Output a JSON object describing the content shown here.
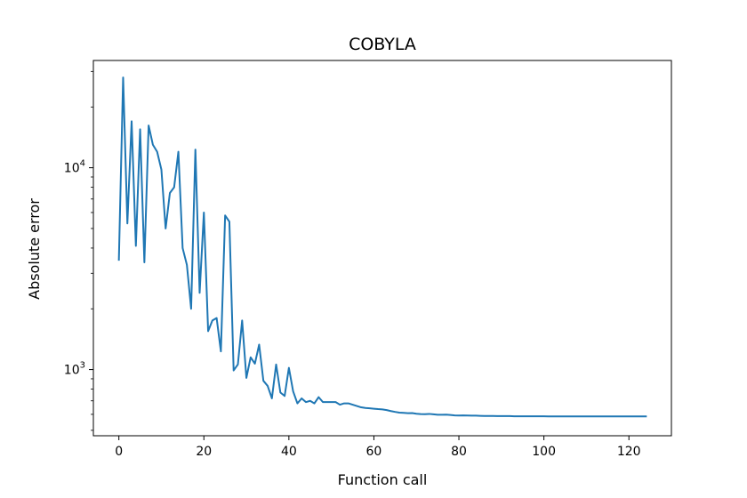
{
  "chart_data": {
    "type": "line",
    "title": "COBYLA",
    "xlabel": "Function call",
    "ylabel": "Absolute error",
    "yscale": "log",
    "xlim": [
      -6,
      130
    ],
    "ylim": [
      470,
      34000
    ],
    "grid": false,
    "legend": "none",
    "x_ticks": [
      0,
      20,
      40,
      60,
      80,
      100,
      120
    ],
    "x_tick_labels": [
      "0",
      "20",
      "40",
      "60",
      "80",
      "100",
      "120"
    ],
    "y_major_ticks": [
      1000,
      10000
    ],
    "y_tick_labels": [
      {
        "base": "10",
        "exp": "3"
      },
      {
        "base": "10",
        "exp": "4"
      }
    ],
    "y_minor_ticks": [
      500,
      600,
      700,
      800,
      900,
      2000,
      3000,
      4000,
      5000,
      6000,
      7000,
      8000,
      9000,
      20000,
      30000
    ],
    "series": [
      {
        "color": "#1f77b4",
        "x": [
          0,
          1,
          2,
          3,
          4,
          5,
          6,
          7,
          8,
          9,
          10,
          11,
          12,
          13,
          14,
          15,
          16,
          17,
          18,
          19,
          20,
          21,
          22,
          23,
          24,
          25,
          26,
          27,
          28,
          29,
          30,
          31,
          32,
          33,
          34,
          35,
          36,
          37,
          38,
          39,
          40,
          41,
          42,
          43,
          44,
          45,
          46,
          47,
          48,
          49,
          50,
          51,
          52,
          53,
          54,
          55,
          56,
          57,
          58,
          59,
          60,
          61,
          62,
          63,
          64,
          65,
          66,
          67,
          68,
          69,
          70,
          71,
          72,
          73,
          74,
          75,
          76,
          77,
          78,
          79,
          80,
          81,
          82,
          83,
          84,
          85,
          86,
          87,
          88,
          89,
          90,
          91,
          92,
          93,
          94,
          95,
          96,
          97,
          98,
          99,
          100,
          101,
          102,
          103,
          104,
          105,
          106,
          107,
          108,
          109,
          110,
          111,
          112,
          113,
          114,
          115,
          116,
          117,
          118,
          119,
          120,
          121,
          122,
          123,
          124
        ],
        "y": [
          3500,
          28000,
          5300,
          17000,
          4100,
          15500,
          3400,
          16200,
          13000,
          12000,
          9800,
          5000,
          7500,
          8000,
          12000,
          4000,
          3300,
          2000,
          12300,
          2400,
          6000,
          1550,
          1750,
          1800,
          1230,
          5800,
          5400,
          990,
          1060,
          1750,
          910,
          1150,
          1070,
          1330,
          880,
          830,
          720,
          1060,
          770,
          740,
          1020,
          780,
          680,
          720,
          690,
          700,
          680,
          730,
          690,
          690,
          690,
          690,
          670,
          680,
          680,
          670,
          660,
          650,
          645,
          643,
          640,
          637,
          635,
          630,
          623,
          617,
          612,
          610,
          608,
          609,
          604,
          602,
          601,
          603,
          600,
          597,
          597,
          598,
          596,
          593,
          592,
          593,
          592,
          591,
          591,
          590,
          589,
          589,
          589,
          588,
          588,
          588,
          588,
          587,
          587,
          587,
          587,
          587,
          587,
          587,
          587,
          586,
          586,
          586,
          586,
          586,
          586,
          586,
          586,
          586,
          586,
          586,
          586,
          586,
          586,
          586,
          586,
          586,
          586,
          586,
          586,
          586,
          586,
          586,
          586
        ]
      }
    ]
  }
}
